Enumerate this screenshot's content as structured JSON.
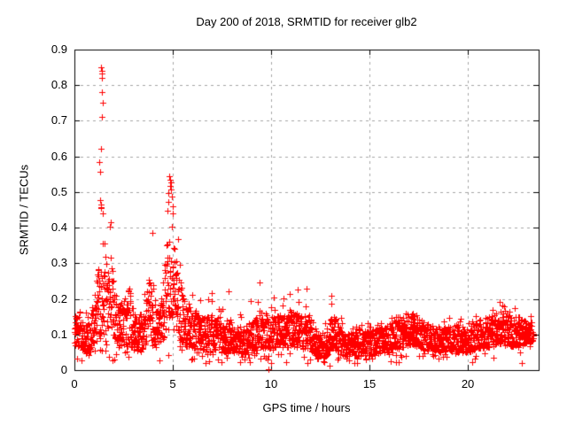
{
  "figure": {
    "background": "#ffffff",
    "text_color": "#000000"
  },
  "chart_data": {
    "type": "scatter",
    "title": "Day 200 of 2018, SRMTID for receiver glb2",
    "xlabel": "GPS time / hours",
    "ylabel": "SRMTID / TECUs",
    "xlim": [
      0,
      23.6
    ],
    "ylim": [
      0,
      0.9
    ],
    "xticks": [
      {
        "v": 0,
        "label": "0"
      },
      {
        "v": 5,
        "label": "5"
      },
      {
        "v": 10,
        "label": "10"
      },
      {
        "v": 15,
        "label": "15"
      },
      {
        "v": 20,
        "label": "20"
      }
    ],
    "yticks": [
      {
        "v": 0.0,
        "label": "0"
      },
      {
        "v": 0.1,
        "label": "0.1"
      },
      {
        "v": 0.2,
        "label": "0.2"
      },
      {
        "v": 0.3,
        "label": "0.3"
      },
      {
        "v": 0.4,
        "label": "0.4"
      },
      {
        "v": 0.5,
        "label": "0.5"
      },
      {
        "v": 0.6,
        "label": "0.6"
      },
      {
        "v": 0.7,
        "label": "0.7"
      },
      {
        "v": 0.8,
        "label": "0.8"
      },
      {
        "v": 0.9,
        "label": "0.9"
      }
    ],
    "grid": true,
    "legend": "none",
    "marker": "plus",
    "marker_color": "#ff0000",
    "grid_color": "#a6a6a6",
    "frame_color": "#000000",
    "seed": 20018,
    "points_per_hour": 120,
    "t_start": 0.0,
    "t_end": 23.35,
    "band_skew": 1.25,
    "excursion_prob": 0.2,
    "excursion_pow": 2.4,
    "dip_prob": 0.04,
    "y_floor": 0.02,
    "envelope": [
      [
        0.0,
        0.06,
        0.15,
        0.18
      ],
      [
        0.25,
        0.07,
        0.17,
        0.21
      ],
      [
        0.5,
        0.05,
        0.12,
        0.16
      ],
      [
        0.8,
        0.05,
        0.14,
        0.22
      ],
      [
        1.0,
        0.07,
        0.22,
        0.3
      ],
      [
        1.2,
        0.08,
        0.28,
        0.46
      ],
      [
        1.4,
        0.1,
        0.38,
        0.55
      ],
      [
        1.6,
        0.1,
        0.33,
        0.47
      ],
      [
        1.8,
        0.12,
        0.36,
        0.43
      ],
      [
        2.0,
        0.08,
        0.26,
        0.34
      ],
      [
        2.2,
        0.06,
        0.18,
        0.26
      ],
      [
        2.5,
        0.06,
        0.2,
        0.3
      ],
      [
        2.8,
        0.07,
        0.24,
        0.33
      ],
      [
        3.0,
        0.06,
        0.18,
        0.26
      ],
      [
        3.2,
        0.05,
        0.15,
        0.21
      ],
      [
        3.5,
        0.06,
        0.18,
        0.28
      ],
      [
        3.8,
        0.08,
        0.26,
        0.36
      ],
      [
        4.0,
        0.08,
        0.24,
        0.38
      ],
      [
        4.2,
        0.06,
        0.18,
        0.26
      ],
      [
        4.5,
        0.08,
        0.22,
        0.31
      ],
      [
        4.7,
        0.12,
        0.36,
        0.5
      ],
      [
        4.9,
        0.15,
        0.42,
        0.54
      ],
      [
        5.1,
        0.12,
        0.34,
        0.48
      ],
      [
        5.35,
        0.08,
        0.25,
        0.36
      ],
      [
        5.6,
        0.07,
        0.2,
        0.28
      ],
      [
        6.0,
        0.06,
        0.16,
        0.23
      ],
      [
        6.3,
        0.06,
        0.17,
        0.25
      ],
      [
        6.7,
        0.05,
        0.15,
        0.24
      ],
      [
        7.0,
        0.06,
        0.15,
        0.25
      ],
      [
        7.4,
        0.05,
        0.13,
        0.18
      ],
      [
        7.8,
        0.05,
        0.14,
        0.26
      ],
      [
        8.2,
        0.05,
        0.13,
        0.2
      ],
      [
        8.6,
        0.04,
        0.12,
        0.18
      ],
      [
        9.0,
        0.05,
        0.14,
        0.24
      ],
      [
        9.5,
        0.06,
        0.15,
        0.27
      ],
      [
        10.0,
        0.06,
        0.14,
        0.2
      ],
      [
        10.4,
        0.07,
        0.16,
        0.22
      ],
      [
        10.8,
        0.06,
        0.15,
        0.22
      ],
      [
        11.1,
        0.07,
        0.17,
        0.31
      ],
      [
        11.5,
        0.06,
        0.15,
        0.22
      ],
      [
        11.9,
        0.06,
        0.16,
        0.27
      ],
      [
        12.3,
        0.04,
        0.11,
        0.15
      ],
      [
        12.7,
        0.035,
        0.1,
        0.14
      ],
      [
        13.0,
        0.05,
        0.14,
        0.24
      ],
      [
        13.2,
        0.06,
        0.16,
        0.31
      ],
      [
        13.6,
        0.04,
        0.11,
        0.16
      ],
      [
        14.0,
        0.04,
        0.11,
        0.15
      ],
      [
        14.5,
        0.04,
        0.12,
        0.17
      ],
      [
        15.0,
        0.04,
        0.11,
        0.16
      ],
      [
        15.5,
        0.05,
        0.12,
        0.17
      ],
      [
        16.0,
        0.05,
        0.13,
        0.18
      ],
      [
        16.5,
        0.06,
        0.15,
        0.2
      ],
      [
        17.0,
        0.07,
        0.16,
        0.22
      ],
      [
        17.3,
        0.07,
        0.16,
        0.21
      ],
      [
        17.7,
        0.06,
        0.14,
        0.19
      ],
      [
        18.0,
        0.05,
        0.13,
        0.18
      ],
      [
        18.5,
        0.05,
        0.12,
        0.17
      ],
      [
        19.0,
        0.05,
        0.12,
        0.16
      ],
      [
        19.5,
        0.05,
        0.13,
        0.17
      ],
      [
        20.0,
        0.05,
        0.12,
        0.16
      ],
      [
        20.5,
        0.06,
        0.14,
        0.18
      ],
      [
        21.0,
        0.06,
        0.15,
        0.19
      ],
      [
        21.5,
        0.07,
        0.16,
        0.21
      ],
      [
        21.8,
        0.07,
        0.17,
        0.24
      ],
      [
        22.1,
        0.07,
        0.16,
        0.22
      ],
      [
        22.5,
        0.06,
        0.15,
        0.2
      ],
      [
        22.8,
        0.07,
        0.15,
        0.19
      ],
      [
        23.1,
        0.08,
        0.14,
        0.17
      ],
      [
        23.35,
        0.08,
        0.13,
        0.15
      ]
    ],
    "outliers": [
      [
        1.28,
        0.585
      ],
      [
        1.29,
        0.557
      ],
      [
        1.36,
        0.85
      ],
      [
        1.4,
        0.84
      ],
      [
        1.41,
        0.833
      ],
      [
        1.39,
        0.82
      ],
      [
        1.38,
        0.781
      ],
      [
        1.42,
        0.752
      ],
      [
        1.4,
        0.712
      ],
      [
        1.37,
        0.622
      ],
      [
        1.31,
        0.478
      ],
      [
        1.33,
        0.465
      ],
      [
        1.35,
        0.455
      ],
      [
        1.44,
        0.44
      ],
      [
        4.82,
        0.545
      ],
      [
        4.88,
        0.535
      ],
      [
        4.91,
        0.527
      ],
      [
        4.85,
        0.517
      ],
      [
        4.93,
        0.507
      ],
      [
        4.79,
        0.497
      ],
      [
        4.96,
        0.487
      ],
      [
        4.76,
        0.472
      ],
      [
        4.99,
        0.46
      ],
      [
        4.72,
        0.448
      ],
      [
        5.02,
        0.44
      ],
      [
        3.95,
        0.385
      ],
      [
        1.85,
        0.415
      ],
      [
        1.82,
        0.402
      ],
      [
        9.87,
        0.003
      ],
      [
        12.95,
        0.012
      ]
    ]
  }
}
